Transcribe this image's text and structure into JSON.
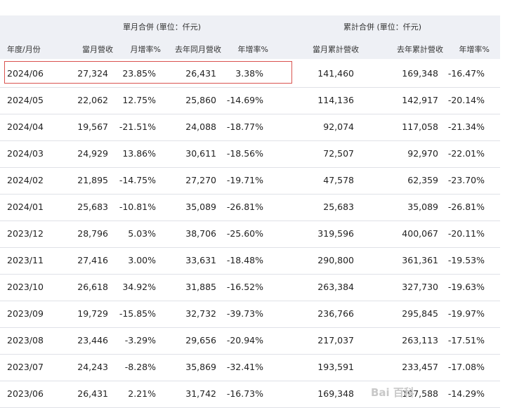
{
  "header": {
    "group_monthly": "單月合併 (單位：仟元)",
    "group_cumulative": "累計合併 (單位：仟元)",
    "columns": [
      "年度/月份",
      "當月營收",
      "月增率%",
      "去年同月營收",
      "年增率%",
      "當月累計營收",
      "去年累計營收",
      "年增率%"
    ]
  },
  "rows": [
    [
      "2024/06",
      "27,324",
      "23.85%",
      "26,431",
      "3.38%",
      "141,460",
      "169,348",
      "-16.47%"
    ],
    [
      "2024/05",
      "22,062",
      "12.75%",
      "25,860",
      "-14.69%",
      "114,136",
      "142,917",
      "-20.14%"
    ],
    [
      "2024/04",
      "19,567",
      "-21.51%",
      "24,088",
      "-18.77%",
      "92,074",
      "117,058",
      "-21.34%"
    ],
    [
      "2024/03",
      "24,929",
      "13.86%",
      "30,611",
      "-18.56%",
      "72,507",
      "92,970",
      "-22.01%"
    ],
    [
      "2024/02",
      "21,895",
      "-14.75%",
      "27,270",
      "-19.71%",
      "47,578",
      "62,359",
      "-23.70%"
    ],
    [
      "2024/01",
      "25,683",
      "-10.81%",
      "35,089",
      "-26.81%",
      "25,683",
      "35,089",
      "-26.81%"
    ],
    [
      "2023/12",
      "28,796",
      "5.03%",
      "38,706",
      "-25.60%",
      "319,596",
      "400,067",
      "-20.11%"
    ],
    [
      "2023/11",
      "27,416",
      "3.00%",
      "33,631",
      "-18.48%",
      "290,800",
      "361,361",
      "-19.53%"
    ],
    [
      "2023/10",
      "26,618",
      "34.92%",
      "31,885",
      "-16.52%",
      "263,384",
      "327,730",
      "-19.63%"
    ],
    [
      "2023/09",
      "19,729",
      "-15.85%",
      "32,732",
      "-39.73%",
      "236,766",
      "295,845",
      "-19.97%"
    ],
    [
      "2023/08",
      "23,446",
      "-3.29%",
      "29,656",
      "-20.94%",
      "217,037",
      "263,113",
      "-17.51%"
    ],
    [
      "2023/07",
      "24,243",
      "-8.28%",
      "35,869",
      "-32.41%",
      "193,591",
      "233,457",
      "-17.08%"
    ],
    [
      "2023/06",
      "26,431",
      "2.21%",
      "31,742",
      "-16.73%",
      "169,348",
      "197,588",
      "-14.29%"
    ]
  ],
  "watermark": "Bai 百科"
}
